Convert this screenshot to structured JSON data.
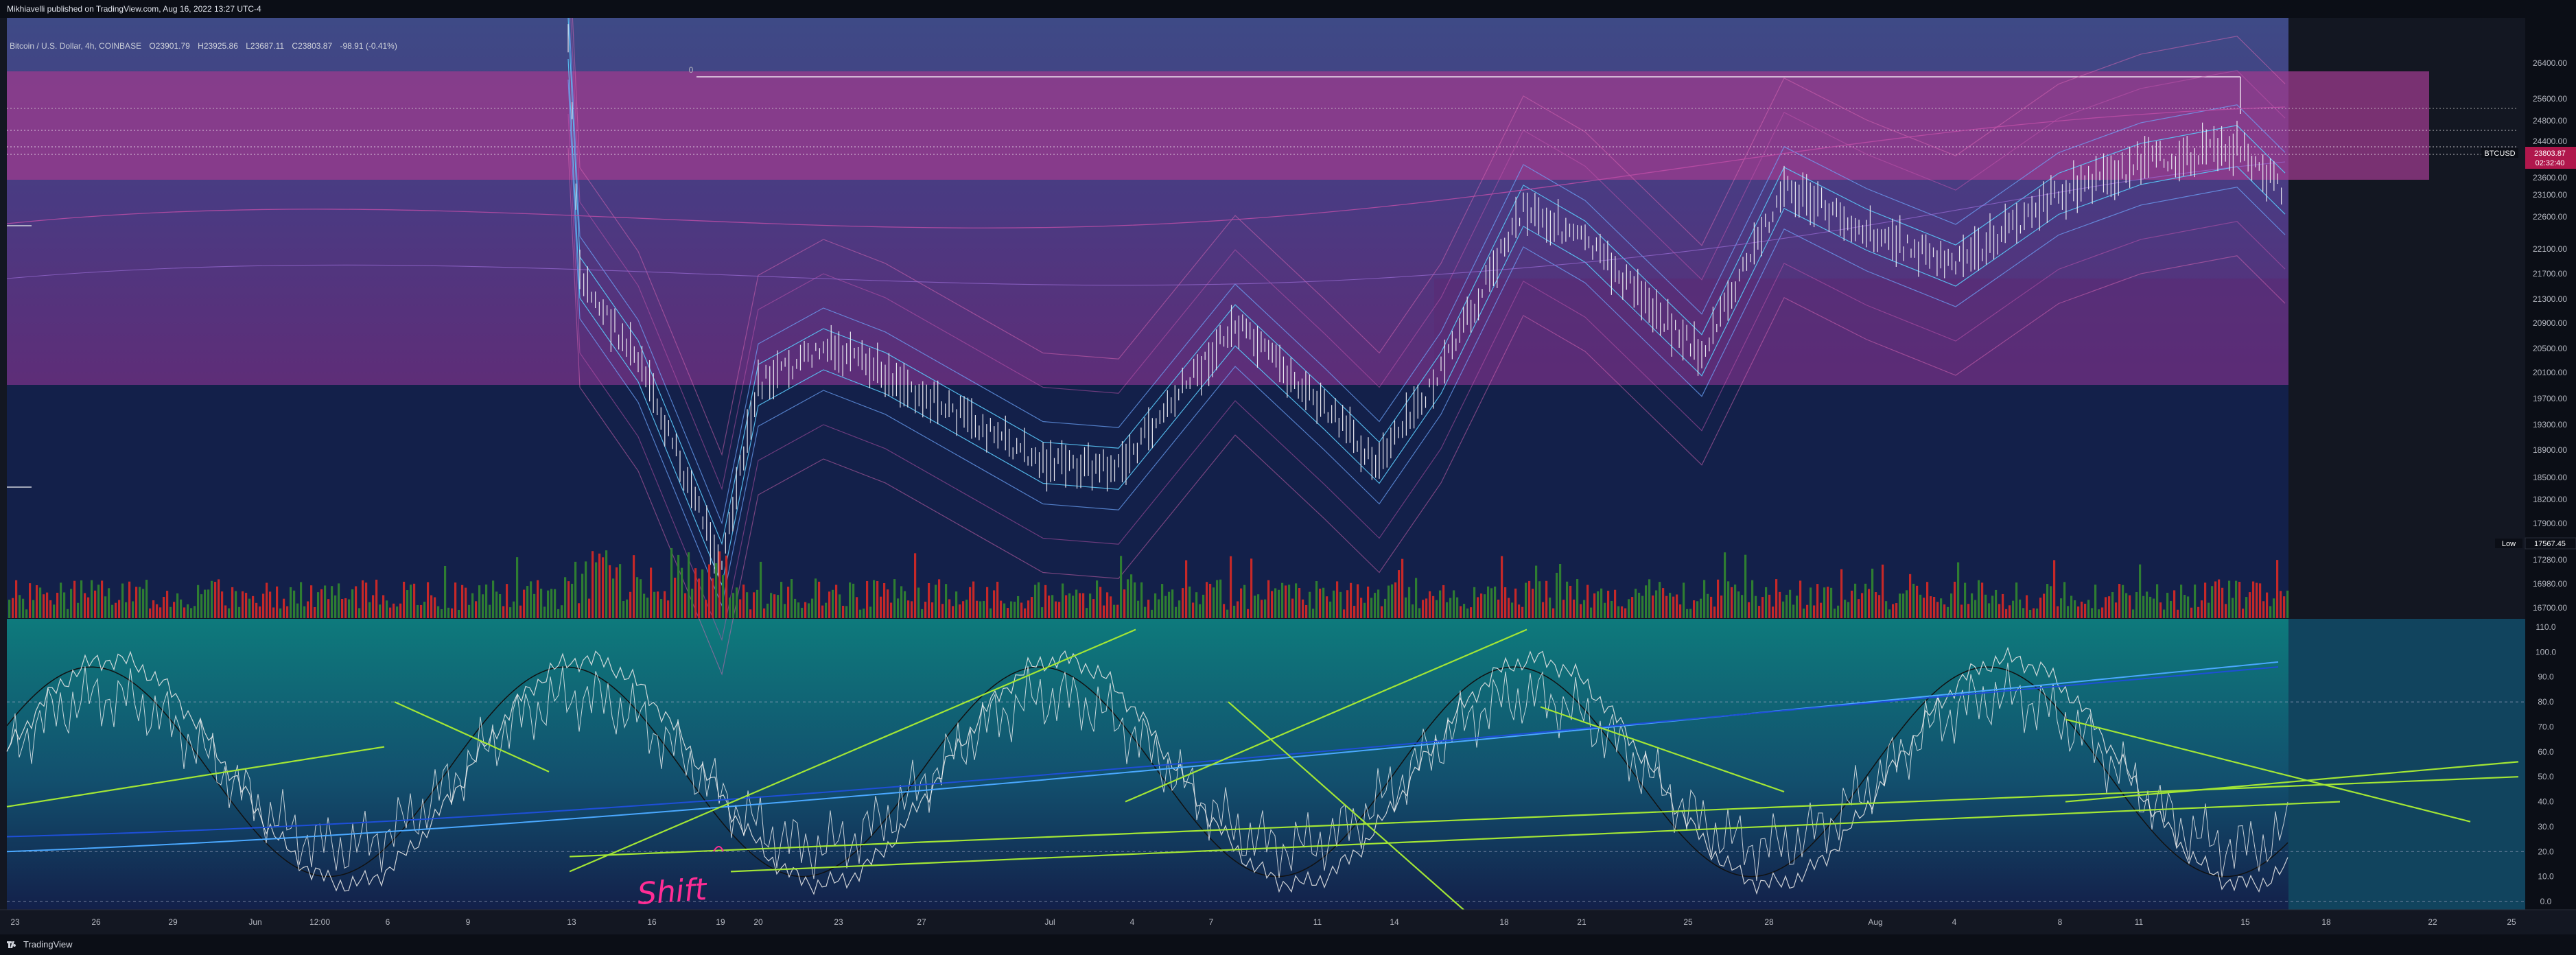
{
  "header": {
    "publisher_line": "Mikhiavelli published on TradingView.com, Aug 16, 2022 13:27 UTC-4"
  },
  "legend": {
    "symbol": "Bitcoin / U.S. Dollar, 4h, COINBASE",
    "open": "O23901.79",
    "high": "H23925.86",
    "low": "L23687.11",
    "close": "C23803.87",
    "change": "-98.91 (-0.41%)"
  },
  "footer": {
    "brand": "TradingView"
  },
  "colors": {
    "background": "#131722",
    "upper_band": "#9c3b8e",
    "mid_zone": "#4a2d7a",
    "lower_zone": "#13204a",
    "osc_zone": "#0f6a70",
    "volume_up": "#2e7d32",
    "volume_down": "#c62828",
    "trendline": "#a3e635",
    "annotation": "#ff2d95"
  },
  "chart_data": {
    "type": "line",
    "price_axis": {
      "ticks": [
        "26400.00",
        "25600.00",
        "24800.00",
        "24400.00",
        "24000.00",
        "23600.00",
        "23100.00",
        "22600.00",
        "22100.00",
        "21700.00",
        "21300.00",
        "20900.00",
        "20500.00",
        "20100.00",
        "19700.00",
        "19300.00",
        "18900.00",
        "18500.00",
        "18200.00",
        "17900.00",
        "17280.00",
        "16980.00",
        "16700.00"
      ],
      "last_price_label": "BTCUSD",
      "last_price": "23803.87",
      "countdown": "02:32:40",
      "low_label": "Low",
      "low_value": "17567.45"
    },
    "oscillator_axis": {
      "ticks": [
        "110.0",
        "100.0",
        "90.0",
        "80.0",
        "70.0",
        "60.0",
        "50.0",
        "40.0",
        "30.0",
        "20.0",
        "10.0",
        "0.0"
      ]
    },
    "time_axis": {
      "ticks": [
        "23",
        "26",
        "29",
        "Jun",
        "12:00",
        "6",
        "9",
        "13",
        "16",
        "19",
        "20",
        "23",
        "27",
        "Jul",
        "4",
        "7",
        "11",
        "14",
        "18",
        "21",
        "25",
        "28",
        "Aug",
        "4",
        "8",
        "11",
        "15",
        "18",
        "22",
        "25"
      ]
    },
    "fib_marker": "0",
    "annotation_text": "Shift",
    "price_series": [
      {
        "t": "Jun 13",
        "close": 26400
      },
      {
        "t": "Jun 14",
        "close": 22400
      },
      {
        "t": "Jun 16",
        "close": 21000
      },
      {
        "t": "Jun 18",
        "close": 17600
      },
      {
        "t": "Jun 20",
        "close": 20600
      },
      {
        "t": "Jun 24",
        "close": 21200
      },
      {
        "t": "Jun 27",
        "close": 20800
      },
      {
        "t": "Jul 1",
        "close": 19300
      },
      {
        "t": "Jul 4",
        "close": 19200
      },
      {
        "t": "Jul 7",
        "close": 21600
      },
      {
        "t": "Jul 11",
        "close": 20200
      },
      {
        "t": "Jul 13",
        "close": 19300
      },
      {
        "t": "Jul 16",
        "close": 20800
      },
      {
        "t": "Jul 19",
        "close": 23600
      },
      {
        "t": "Jul 21",
        "close": 23000
      },
      {
        "t": "Jul 25",
        "close": 21100
      },
      {
        "t": "Jul 28",
        "close": 23900
      },
      {
        "t": "Aug 1",
        "close": 23200
      },
      {
        "t": "Aug 4",
        "close": 22600
      },
      {
        "t": "Aug 8",
        "close": 23800
      },
      {
        "t": "Aug 11",
        "close": 24300
      },
      {
        "t": "Aug 15",
        "close": 24600
      },
      {
        "t": "Aug 16",
        "close": 23803.87
      }
    ]
  }
}
